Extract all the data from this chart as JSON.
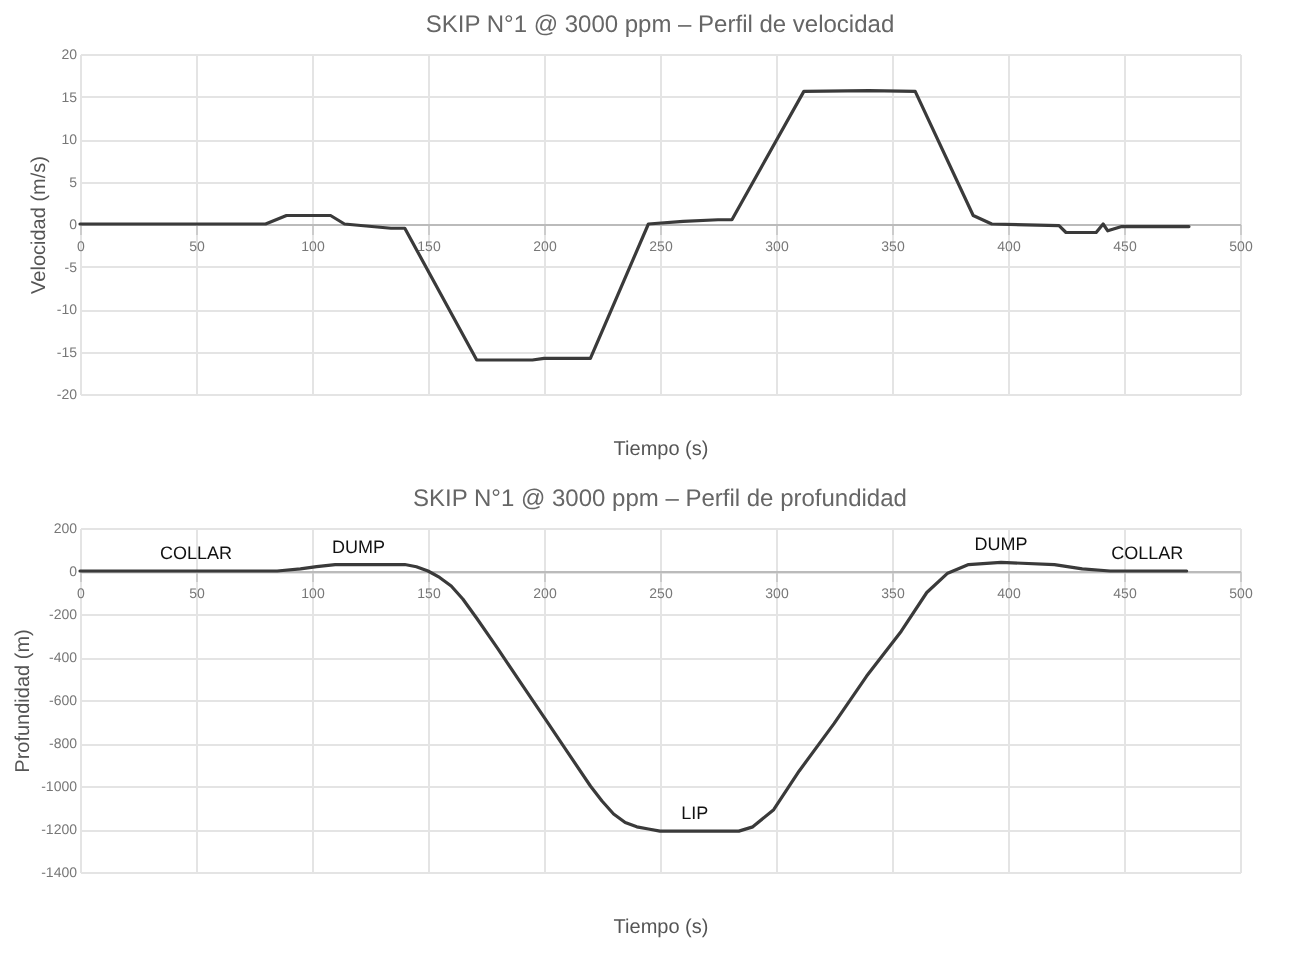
{
  "chart_data": [
    {
      "type": "line",
      "title": "SKIP N°1 @ 3000 ppm – Perfil de velocidad",
      "xlabel": "Tiempo (s)",
      "ylabel": "Velocidad (m/s)",
      "xlim": [
        0,
        500
      ],
      "xticks": [
        0,
        50,
        100,
        150,
        200,
        250,
        300,
        350,
        400,
        450,
        500
      ],
      "ylim": [
        -20,
        20
      ],
      "yticks": [
        -20,
        -15,
        -10,
        -5,
        0,
        5,
        10,
        15,
        20
      ],
      "grid": true,
      "series": [
        {
          "color": "#3a3a3a",
          "x": [
            0,
            80,
            89,
            108,
            114,
            134,
            140,
            171,
            195,
            200,
            220,
            245,
            260,
            275,
            281,
            312,
            340,
            360,
            385,
            393,
            422,
            425,
            438,
            441,
            443,
            449,
            478
          ],
          "values": [
            0,
            0,
            1,
            1,
            0,
            -0.5,
            -0.5,
            -16,
            -16,
            -15.8,
            -15.8,
            0,
            0.3,
            0.5,
            0.5,
            15.6,
            15.7,
            15.6,
            1,
            0,
            -0.2,
            -1,
            -1,
            0,
            -0.8,
            -0.3,
            -0.3
          ]
        }
      ]
    },
    {
      "type": "line",
      "title": "SKIP N°1 @ 3000 ppm – Perfil de profundidad",
      "xlabel": "Tiempo (s)",
      "ylabel": "Profundidad (m)",
      "xlim": [
        0,
        500
      ],
      "xticks": [
        0,
        50,
        100,
        150,
        200,
        250,
        300,
        350,
        400,
        450,
        500
      ],
      "ylim": [
        -1400,
        200
      ],
      "yticks": [
        -1400,
        -1200,
        -1000,
        -800,
        -600,
        -400,
        -200,
        0,
        200
      ],
      "grid": true,
      "annotations": [
        {
          "text": "COLLAR",
          "x": 50,
          "y": 0
        },
        {
          "text": "DUMP",
          "x": 120,
          "y": 30
        },
        {
          "text": "LIP",
          "x": 265,
          "y": -1210
        },
        {
          "text": "DUMP",
          "x": 397,
          "y": 40
        },
        {
          "text": "COLLAR",
          "x": 460,
          "y": 0
        }
      ],
      "series": [
        {
          "color": "#3a3a3a",
          "x": [
            0,
            85,
            95,
            102,
            110,
            140,
            145,
            150,
            155,
            160,
            165,
            171,
            180,
            190,
            200,
            210,
            220,
            225,
            230,
            235,
            240,
            245,
            250,
            284,
            290,
            299,
            310,
            325,
            339,
            354,
            365,
            374,
            383,
            397,
            420,
            432,
            444,
            477
          ],
          "values": [
            0,
            0,
            10,
            20,
            30,
            30,
            20,
            0,
            -30,
            -70,
            -130,
            -220,
            -360,
            -520,
            -680,
            -840,
            -1000,
            -1070,
            -1130,
            -1170,
            -1190,
            -1200,
            -1210,
            -1210,
            -1190,
            -1110,
            -930,
            -710,
            -490,
            -280,
            -100,
            -10,
            30,
            40,
            30,
            10,
            0,
            0
          ]
        }
      ]
    }
  ]
}
